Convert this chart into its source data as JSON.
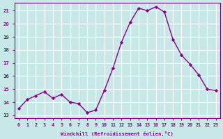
{
  "x": [
    0,
    1,
    2,
    3,
    4,
    5,
    6,
    7,
    8,
    9,
    10,
    11,
    12,
    13,
    14,
    15,
    16,
    17,
    18,
    19,
    20,
    21,
    22,
    23
  ],
  "y": [
    13.5,
    14.2,
    14.5,
    14.8,
    14.3,
    14.6,
    14.0,
    13.9,
    13.2,
    13.4,
    14.9,
    16.6,
    18.6,
    20.1,
    21.2,
    21.0,
    21.3,
    20.9,
    18.8,
    17.6,
    16.9,
    16.1,
    15.0,
    14.9
  ],
  "line_color": "#8B008B",
  "marker_color": "#8B008B",
  "bg_color": "#c8e8e8",
  "grid_color": "#ffffff",
  "xlabel": "Windchill (Refroidissement éolien,°C)",
  "xlabel_color": "#8B008B",
  "xtick_labels": [
    "0",
    "1",
    "2",
    "3",
    "4",
    "5",
    "6",
    "7",
    "8",
    "9",
    "10",
    "11",
    "12",
    "13",
    "14",
    "15",
    "16",
    "17",
    "18",
    "19",
    "20",
    "21",
    "22",
    "23"
  ],
  "ytick_labels": [
    "13",
    "14",
    "15",
    "16",
    "17",
    "18",
    "19",
    "20",
    "21"
  ],
  "ylim": [
    12.8,
    21.6
  ],
  "xlim": [
    -0.5,
    23.5
  ],
  "tick_color": "#8B008B",
  "spine_color": "#8B008B",
  "figsize": [
    3.2,
    2.0
  ],
  "dpi": 100
}
